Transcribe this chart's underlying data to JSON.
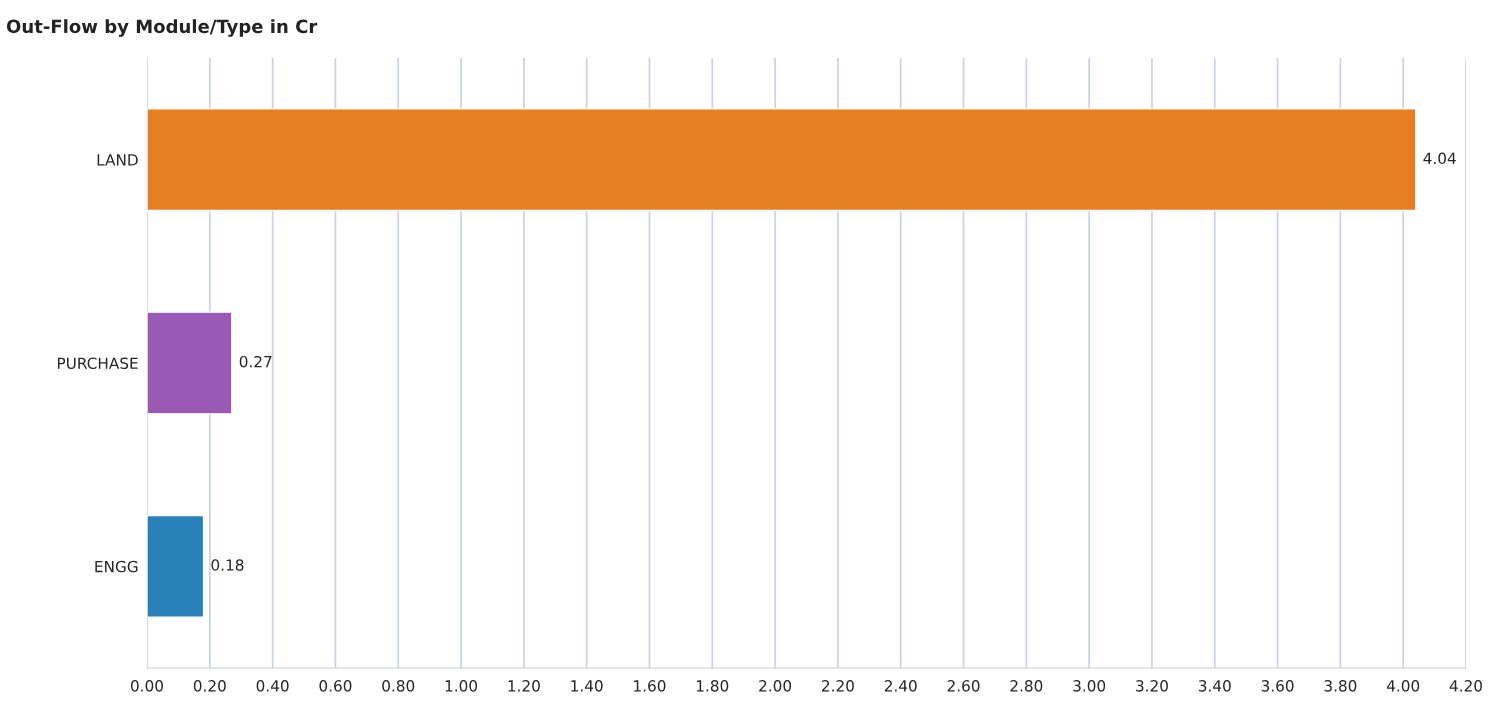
{
  "chart_data": {
    "type": "bar",
    "orientation": "horizontal",
    "title": "Out-Flow by Module/Type in Cr",
    "categories": [
      "LAND",
      "PURCHASE",
      "ENGG"
    ],
    "values": [
      4.04,
      0.27,
      0.18
    ],
    "colors": [
      "#e67e22",
      "#9b59b6",
      "#2980b9"
    ],
    "xlim": [
      0,
      4.2
    ],
    "xticks": [
      {
        "value": 0,
        "label": "0.00"
      },
      {
        "value": 0.2,
        "label": "0.20"
      },
      {
        "value": 0.4,
        "label": "0.40"
      },
      {
        "value": 0.6,
        "label": "0.60"
      },
      {
        "value": 0.8,
        "label": "0.80"
      },
      {
        "value": 1.0,
        "label": "1.00"
      },
      {
        "value": 1.2,
        "label": "1.20"
      },
      {
        "value": 1.4,
        "label": "1.40"
      },
      {
        "value": 1.6,
        "label": "1.60"
      },
      {
        "value": 1.8,
        "label": "1.80"
      },
      {
        "value": 2.0,
        "label": "2.00"
      },
      {
        "value": 2.2,
        "label": "2.20"
      },
      {
        "value": 2.4,
        "label": "2.40"
      },
      {
        "value": 2.6,
        "label": "2.60"
      },
      {
        "value": 2.8,
        "label": "2.80"
      },
      {
        "value": 3.0,
        "label": "3.00"
      },
      {
        "value": 3.2,
        "label": "3.20"
      },
      {
        "value": 3.4,
        "label": "3.40"
      },
      {
        "value": 3.6,
        "label": "3.60"
      },
      {
        "value": 3.8,
        "label": "3.80"
      },
      {
        "value": 4.0,
        "label": "4.00"
      },
      {
        "value": 4.2,
        "label": "4.20"
      }
    ],
    "grid": "x",
    "data_labels": true
  }
}
